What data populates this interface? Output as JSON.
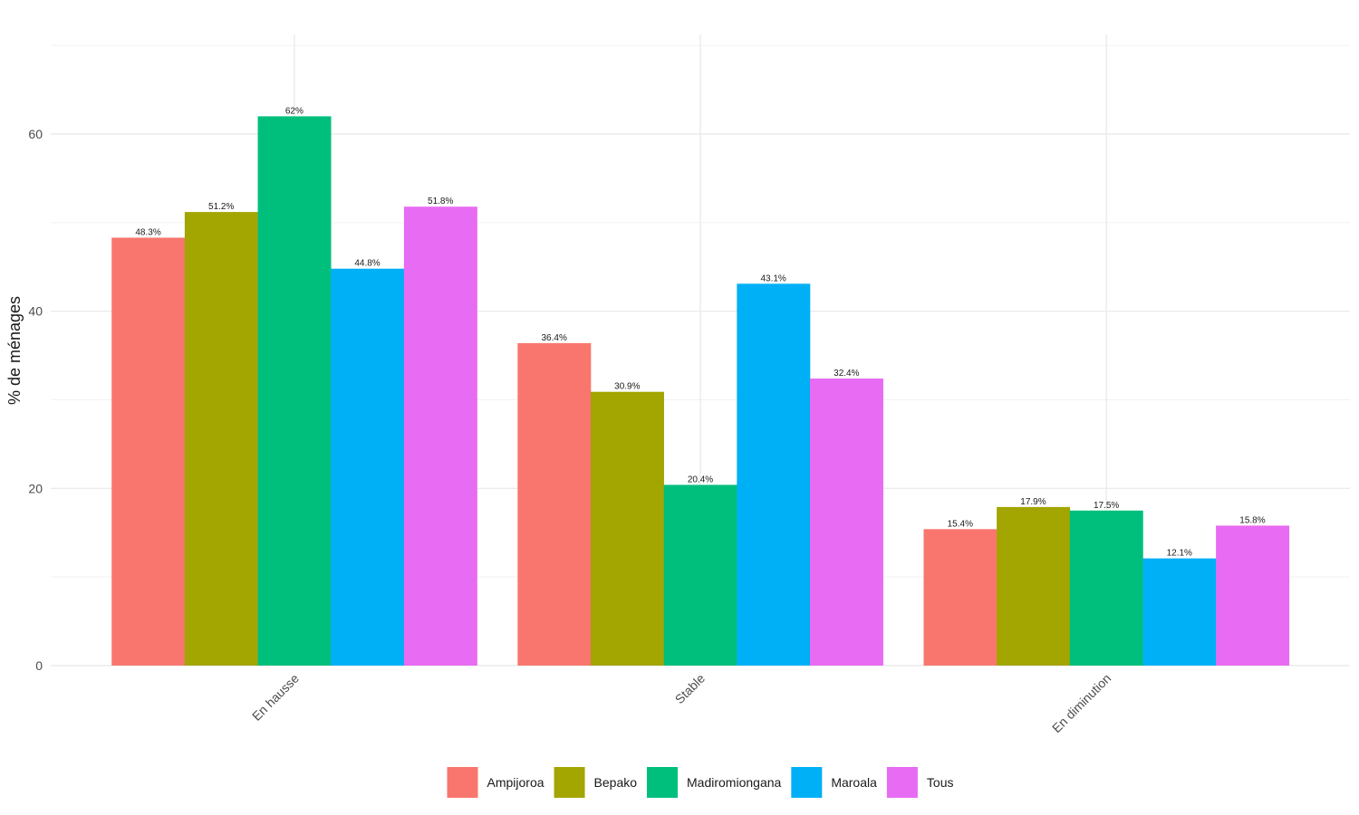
{
  "chart_data": {
    "type": "bar",
    "categories": [
      "En hausse",
      "Stable",
      "En diminution"
    ],
    "series": [
      {
        "name": "Ampijoroa",
        "color": "#F8766D",
        "values": [
          48.3,
          36.4,
          15.4
        ],
        "labels": [
          "48.3%",
          "36.4%",
          "15.4%"
        ]
      },
      {
        "name": "Bepako",
        "color": "#A3A500",
        "values": [
          51.2,
          30.9,
          17.9
        ],
        "labels": [
          "51.2%",
          "30.9%",
          "17.9%"
        ]
      },
      {
        "name": "Madiromiongana",
        "color": "#00BF7D",
        "values": [
          62,
          20.4,
          17.5
        ],
        "labels": [
          "62%",
          "20.4%",
          "17.5%"
        ]
      },
      {
        "name": "Maroala",
        "color": "#00B0F6",
        "values": [
          44.8,
          43.1,
          12.1
        ],
        "labels": [
          "44.8%",
          "43.1%",
          "12.1%"
        ]
      },
      {
        "name": "Tous",
        "color": "#E76BF3",
        "values": [
          51.8,
          32.4,
          15.8
        ],
        "labels": [
          "51.8%",
          "32.4%",
          "15.8%"
        ]
      }
    ],
    "xlabel": "",
    "ylabel": "% de ménages",
    "ylim": [
      0,
      70
    ],
    "yticks": [
      0,
      20,
      40,
      60
    ],
    "grid": true,
    "legend_position": "bottom"
  }
}
